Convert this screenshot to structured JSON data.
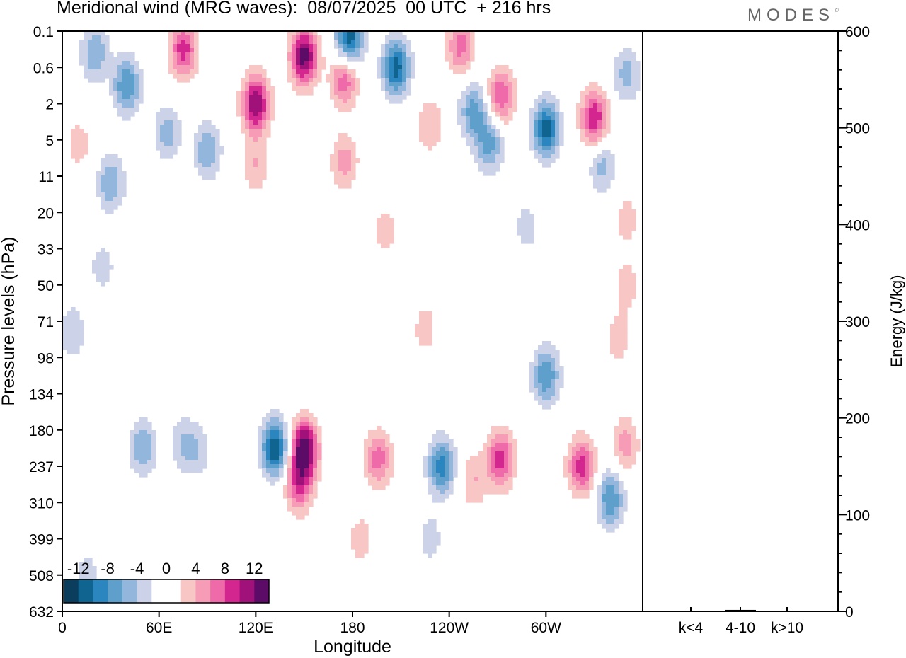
{
  "header": {
    "title": "Meridional wind (MRG waves):  08/07/2025  00 UTC  + 216 hrs",
    "logo": "MODES",
    "logo_mark": "©"
  },
  "chart_data": [
    {
      "type": "heatmap",
      "title": "Meridional wind (MRG waves):  08/07/2025  00 UTC  + 216 hrs",
      "xlabel": "Longitude",
      "ylabel": "Pressure levels (hPa)",
      "x_ticks": [
        "0",
        "60E",
        "120E",
        "180",
        "120W",
        "60W"
      ],
      "x_tick_degrees": [
        0,
        60,
        120,
        180,
        240,
        300
      ],
      "xlim": [
        0,
        360
      ],
      "y_ticks": [
        "0.1",
        "0.6",
        "2",
        "5",
        "11",
        "20",
        "33",
        "50",
        "71",
        "98",
        "134",
        "180",
        "237",
        "310",
        "399",
        "508",
        "632"
      ],
      "colorbar": {
        "labels": [
          "-12",
          "-8",
          "-4",
          "0",
          "4",
          "8",
          "12"
        ],
        "levels": [
          -14,
          -12,
          -10,
          -8,
          -6,
          -4,
          -2,
          0,
          2,
          4,
          6,
          8,
          10,
          12,
          14
        ],
        "colors": [
          "#0b3d5c",
          "#0f6590",
          "#2b86c0",
          "#5f9fcc",
          "#93b6dc",
          "#ccd3e8",
          "#ffffff",
          "#ffffff",
          "#f8c6c4",
          "#f79cb6",
          "#ef6aa9",
          "#d4268f",
          "#a0127a",
          "#5c0b66"
        ],
        "position": "bottom-left"
      },
      "features": [
        {
          "lon": 50,
          "level": 11.5,
          "value": -6
        },
        {
          "lon": 75,
          "level": 11.4,
          "value": -4
        },
        {
          "lon": 85,
          "level": 11.6,
          "value": -3
        },
        {
          "lon": 132,
          "level": 11.5,
          "value": -12
        },
        {
          "lon": 150,
          "level": 11.5,
          "value": 14
        },
        {
          "lon": 147,
          "level": 12.5,
          "value": 8
        },
        {
          "lon": 196,
          "level": 11.8,
          "value": 7
        },
        {
          "lon": 185,
          "level": 14,
          "value": 3
        },
        {
          "lon": 235,
          "level": 12,
          "value": -9
        },
        {
          "lon": 228,
          "level": 14,
          "value": -3
        },
        {
          "lon": 272,
          "level": 11.8,
          "value": 9
        },
        {
          "lon": 255,
          "level": 12.4,
          "value": 4
        },
        {
          "lon": 300,
          "level": 9.5,
          "value": -8
        },
        {
          "lon": 322,
          "level": 12,
          "value": 9
        },
        {
          "lon": 340,
          "level": 12.9,
          "value": -8
        },
        {
          "lon": 349,
          "level": 11.4,
          "value": 5
        },
        {
          "lon": 15,
          "level": 15,
          "value": -3
        },
        {
          "lon": 30,
          "level": 12.5,
          "value": 2
        },
        {
          "lon": 40,
          "level": 1.5,
          "value": -8
        },
        {
          "lon": 20,
          "level": 0.6,
          "value": -6
        },
        {
          "lon": 75,
          "level": 0.5,
          "value": 9
        },
        {
          "lon": 120,
          "level": 2,
          "value": 12
        },
        {
          "lon": 150,
          "level": 0.7,
          "value": 13
        },
        {
          "lon": 175,
          "level": 1.3,
          "value": 8
        },
        {
          "lon": 178,
          "level": 0.2,
          "value": -12
        },
        {
          "lon": 207,
          "level": 1.0,
          "value": -11
        },
        {
          "lon": 247,
          "level": 0.4,
          "value": 7
        },
        {
          "lon": 272,
          "level": 1.8,
          "value": 8
        },
        {
          "lon": 255,
          "level": 2.2,
          "value": -7
        },
        {
          "lon": 300,
          "level": 2.7,
          "value": -11
        },
        {
          "lon": 330,
          "level": 2.4,
          "value": 10
        },
        {
          "lon": 265,
          "level": 3.1,
          "value": -7
        },
        {
          "lon": 175,
          "level": 3.6,
          "value": 5
        },
        {
          "lon": 120,
          "level": 3.7,
          "value": 4
        },
        {
          "lon": 90,
          "level": 3.3,
          "value": -6
        },
        {
          "lon": 65,
          "level": 2.8,
          "value": -5
        },
        {
          "lon": 10,
          "level": 3.1,
          "value": 3
        },
        {
          "lon": 30,
          "level": 4.2,
          "value": -6
        },
        {
          "lon": 228,
          "level": 2.6,
          "value": 4
        },
        {
          "lon": 335,
          "level": 3.7,
          "value": -5
        },
        {
          "lon": 350,
          "level": 1.2,
          "value": -5
        },
        {
          "lon": 200,
          "level": 5.5,
          "value": 3
        },
        {
          "lon": 288,
          "level": 5.4,
          "value": -3
        },
        {
          "lon": 350,
          "level": 5.2,
          "value": 3
        },
        {
          "lon": 350,
          "level": 7,
          "value": 3
        },
        {
          "lon": 25,
          "level": 6.5,
          "value": -3
        },
        {
          "lon": 135,
          "level": 7.5,
          "value": 2
        },
        {
          "lon": 225,
          "level": 8.2,
          "value": 3
        },
        {
          "lon": 345,
          "level": 8.5,
          "value": 3
        },
        {
          "lon": 280,
          "level": 8.4,
          "value": 2
        },
        {
          "lon": 6,
          "level": 8.3,
          "value": -4
        },
        {
          "lon": 38,
          "level": 8.5,
          "value": 2
        }
      ]
    },
    {
      "type": "bar",
      "categories": [
        "k<4",
        "4-10",
        "k>10"
      ],
      "values": [
        0.5,
        1.5,
        0.5
      ],
      "ylabel": "Energy (J/kg)",
      "ylim": [
        0,
        600
      ],
      "y_ticks": [
        "0",
        "100",
        "200",
        "300",
        "400",
        "500",
        "600"
      ]
    }
  ]
}
